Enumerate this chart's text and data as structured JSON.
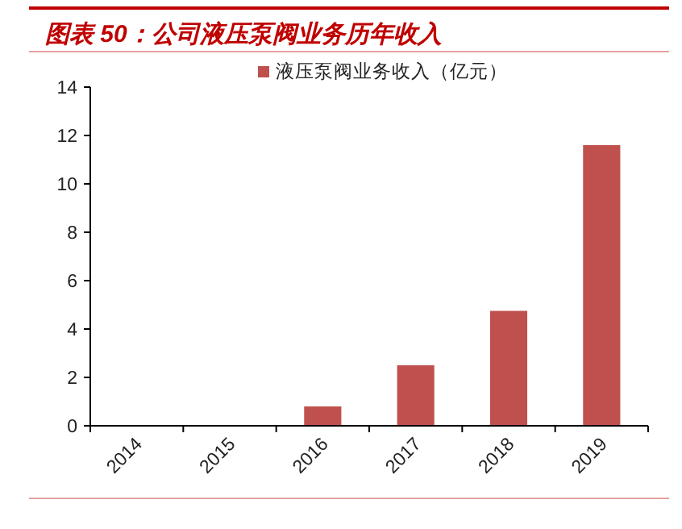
{
  "chart_data": {
    "type": "bar",
    "title": "图表 50：公司液压泵阀业务历年收入",
    "categories": [
      "2014",
      "2015",
      "2016",
      "2017",
      "2018",
      "2019"
    ],
    "series": [
      {
        "name": "液压泵阀业务收入（亿元）",
        "color": "#c0504d",
        "values": [
          0,
          0,
          0.8,
          2.5,
          4.75,
          11.6
        ]
      }
    ],
    "ylim": [
      0,
      14
    ],
    "yticks": [
      0,
      2,
      4,
      6,
      8,
      10,
      12,
      14
    ],
    "grid": false,
    "legend": "top"
  }
}
